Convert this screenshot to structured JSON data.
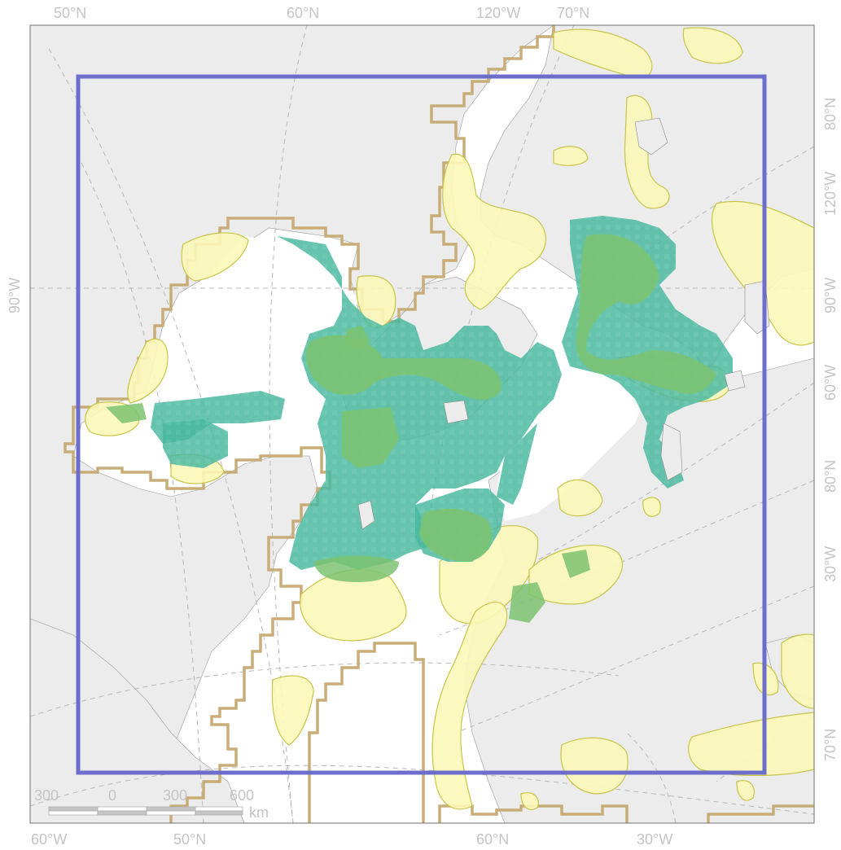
{
  "colors": {
    "land": "#ececec",
    "water": "#ffffff",
    "frame": "#6f6f6f",
    "graticule": "#b8b8b8",
    "boundary_tan": "#c8ad78",
    "yellow_fill": "#fbf8b8",
    "yellow_stroke": "#c9c44a",
    "teal": "#4bb8a0",
    "green": "#7cc370",
    "study_box": "#6d6dcc",
    "label": "#c4c4c4"
  },
  "labels": {
    "top": [
      "50°N",
      "60°N",
      "120°W",
      "70°N"
    ],
    "bottom": [
      "60°W",
      "50°N",
      "60°N",
      "30°W"
    ],
    "left": [
      "90°W"
    ],
    "right": [
      "80°N",
      "120°W",
      "90°W",
      "60°W",
      "80°N",
      "30°W",
      "70°N"
    ]
  },
  "scale_bar": {
    "ticks": [
      "300",
      "0",
      "300",
      "600"
    ],
    "unit": "km"
  }
}
